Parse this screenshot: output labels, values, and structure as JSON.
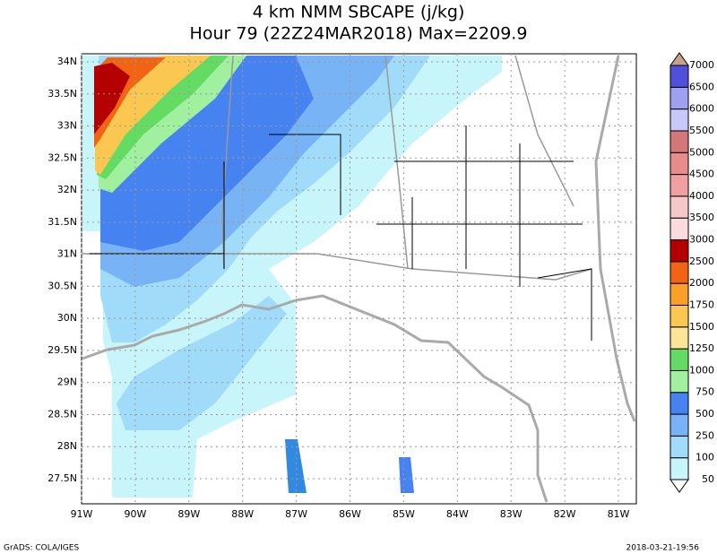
{
  "title": {
    "line1": "4 km NMM SBCAPE (j/kg)",
    "line2": "Hour 79 (22Z24MAR2018) Max=2209.9"
  },
  "map": {
    "lat_labels": [
      "34N",
      "33.5N",
      "33N",
      "32.5N",
      "32N",
      "31.5N",
      "31N",
      "30.5N",
      "30N",
      "29.5N",
      "29N",
      "28.5N",
      "28N",
      "27.5N"
    ],
    "lon_labels": [
      "91W",
      "90W",
      "89W",
      "88W",
      "87W",
      "86W",
      "85W",
      "84W",
      "83W",
      "82W",
      "81W"
    ]
  },
  "colorbar": {
    "labels": [
      "50",
      "100",
      "250",
      "500",
      "750",
      "1000",
      "1250",
      "1500",
      "1750",
      "2000",
      "2500",
      "3000",
      "3500",
      "4000",
      "4500",
      "5000",
      "5500",
      "6000",
      "6500",
      "7000"
    ],
    "colors": [
      "#ffffff",
      "#c8f5fa",
      "#a0dcfa",
      "#78b4f5",
      "#4682f0",
      "#a0f0a0",
      "#64dc64",
      "#fae696",
      "#fac850",
      "#faa028",
      "#f06414",
      "#b40000",
      "#fadcdc",
      "#f5c8c8",
      "#f0a0a0",
      "#e68c8c",
      "#d27878",
      "#c8c8fa",
      "#a0a0f0",
      "#5050dc",
      "#c8a08c"
    ]
  },
  "footer": {
    "left": "GrADS: COLA/IGES",
    "right": "2018-03-21-19:56"
  }
}
